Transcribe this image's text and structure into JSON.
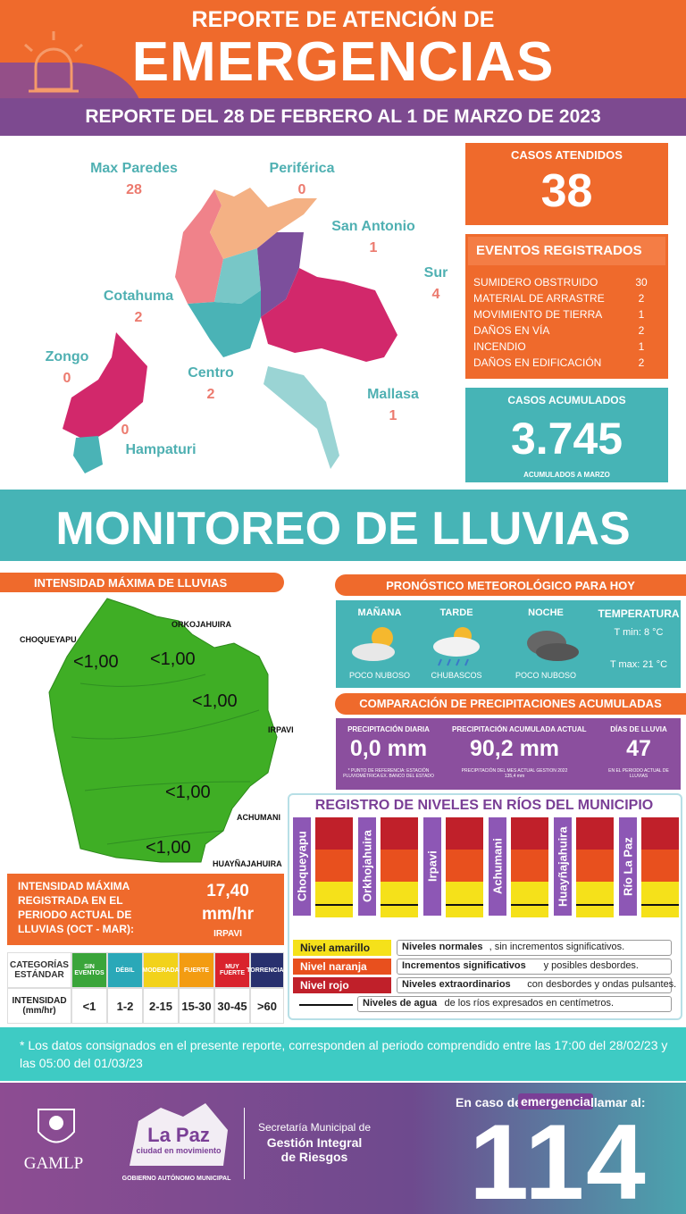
{
  "header": {
    "kicker": "REPORTE DE ATENCIÓN DE",
    "title": "EMERGENCIAS",
    "period": "REPORTE DEL 28 DE FEBRERO AL 1 DE MARZO DE 2023"
  },
  "districts": [
    {
      "name": "Max Paredes",
      "value": "28"
    },
    {
      "name": "Periférica",
      "value": "0"
    },
    {
      "name": "San Antonio",
      "value": "1"
    },
    {
      "name": "Sur",
      "value": "4"
    },
    {
      "name": "Cotahuma",
      "value": "2"
    },
    {
      "name": "Zongo",
      "value": "0"
    },
    {
      "name": "Centro",
      "value": "2"
    },
    {
      "name": "Mallasa",
      "value": "1"
    },
    {
      "name": "Hampaturi",
      "value": "0"
    }
  ],
  "cases": {
    "label": "CASOS ATENDIDOS",
    "value": "38"
  },
  "events": {
    "title": "EVENTOS REGISTRADOS",
    "rows": [
      [
        "SUMIDERO OBSTRUIDO",
        "30"
      ],
      [
        "MATERIAL DE ARRASTRE",
        "2"
      ],
      [
        "MOVIMIENTO DE TIERRA",
        "1"
      ],
      [
        "DAÑOS EN VÍA",
        "2"
      ],
      [
        "INCENDIO",
        "1"
      ],
      [
        "DAÑOS EN EDIFICACIÓN",
        "2"
      ]
    ]
  },
  "accumulated": {
    "label": "CASOS ACUMULADOS",
    "value": "3.745",
    "note": "ACUMULADOS  A MARZO"
  },
  "monitoring_title": "MONITOREO DE LLUVIAS",
  "intensity": {
    "title": "INTENSIDAD MÁXIMA DE LLUVIAS",
    "stations": [
      {
        "name": "CHOQUEYAPU",
        "value": "<1,00"
      },
      {
        "name": "ORKOJAHUIRA",
        "value": "<1,00"
      },
      {
        "name": "IRPAVI",
        "value": "<1,00"
      },
      {
        "name": "ACHUMANI",
        "value": "<1,00"
      },
      {
        "name": "HUAYÑAJAHUIRA",
        "value": "<1,00"
      }
    ],
    "summary": {
      "label": "INTENSIDAD MÁXIMA REGISTRADA EN EL PERIODO ACTUAL DE LLUVIAS (OCT - MAR):",
      "value": "17,40",
      "unit": "mm/hr",
      "station": "IRPAVI"
    }
  },
  "standard": {
    "header": [
      "CATEGORÍAS ESTÁNDAR",
      "SIN EVENTOS",
      "DÉBIL",
      "MODERADA",
      "FUERTE",
      "MUY FUERTE",
      "TORRENCIAL"
    ],
    "row": [
      "INTENSIDAD (mm/hr)",
      "<1",
      "1-2",
      "2-15",
      "15-30",
      "30-45",
      ">60"
    ]
  },
  "forecast": {
    "title": "PRONÓSTICO METEOROLÓGICO PARA HOY",
    "periods": [
      {
        "name": "MAÑANA",
        "desc": "POCO NUBOSO"
      },
      {
        "name": "TARDE",
        "desc": "CHUBASCOS"
      },
      {
        "name": "NOCHE",
        "desc": "POCO NUBOSO"
      }
    ],
    "temperature": {
      "label": "TEMPERATURA",
      "min": "T min:  8 °C",
      "max": "T max: 21 °C"
    }
  },
  "comparison": {
    "title": "COMPARACIÓN DE PRECIPITACIONES ACUMULADAS",
    "items": [
      {
        "label": "PRECIPITACIÓN DIARIA",
        "value": "0,0 mm",
        "note": "* PUNTO DE REFERENCIA: ESTACIÓN PLUVIOMÉTRICA EX. BANCO DEL ESTADO"
      },
      {
        "label": "PRECIPITACIÓN ACUMULADA ACTUAL",
        "value": "90,2 mm",
        "note": "PRECIPITACIÓN DEL MES ACTUAL GESTION 2022 135,4 mm"
      },
      {
        "label": "DÍAS DE LLUVIA",
        "value": "47",
        "note": "EN EL PERIODO ACTUAL DE LLUVIAS"
      }
    ]
  },
  "rivers": {
    "title": "REGISTRO DE NIVELES EN RÍOS DEL MUNICIPIO",
    "names": [
      "Choqueyapu",
      "Orkhojahuira",
      "Irpavi",
      "Achumani",
      "Huayñajahuira",
      "Río La Paz"
    ],
    "legend": [
      {
        "level": "Nivel amarillo",
        "bold": "Niveles normales",
        "rest": ", sin incrementos significativos."
      },
      {
        "level": "Nivel naranja",
        "bold": "Incrementos significativos",
        "rest": " y posibles desbordes."
      },
      {
        "level": "Nivel rojo",
        "bold": "Niveles extraordinarios",
        "rest": " con desbordes y ondas pulsantes."
      },
      {
        "bold": "Niveles de agua",
        "rest": " de los ríos expresados en centímetros."
      }
    ]
  },
  "footnote": "* Los datos consignados en el presente reporte, corresponden al periodo comprendido entre las 17:00 del 28/02/23 y las 05:00 del 01/03/23",
  "footer": {
    "gamlp": "GAMLP",
    "brand": "La Paz",
    "brand_sub": "ciudad en movimiento",
    "government": "GOBIERNO AUTÓNOMO MUNICIPAL",
    "secretaria": [
      "Secretaría Municipal de",
      "Gestión Integral",
      "de Riesgos"
    ],
    "call_pre": "En caso de",
    "call_em": "emergencia",
    "call_post": "llamar al:",
    "number": "114"
  }
}
